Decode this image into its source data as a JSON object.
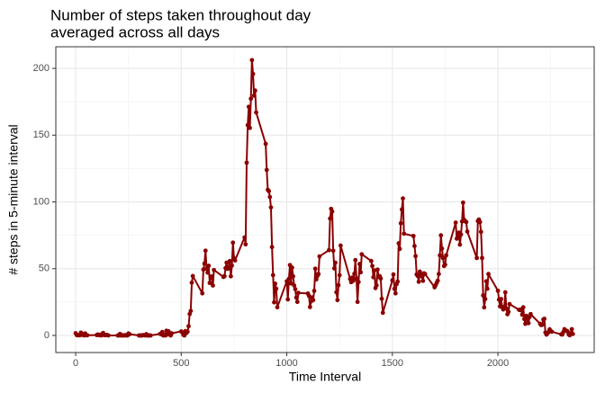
{
  "chart_data": {
    "type": "line",
    "title": [
      "Number of steps taken throughout day",
      "averaged across all days"
    ],
    "x_label": "Time Interval",
    "y_label": "# steps in 5-minute interval",
    "x": [
      0,
      5,
      10,
      15,
      20,
      25,
      30,
      35,
      40,
      45,
      50,
      55,
      100,
      105,
      110,
      115,
      120,
      125,
      130,
      135,
      140,
      145,
      150,
      155,
      200,
      205,
      210,
      215,
      220,
      225,
      230,
      235,
      240,
      245,
      250,
      255,
      300,
      305,
      310,
      315,
      320,
      325,
      330,
      335,
      340,
      345,
      350,
      355,
      400,
      405,
      410,
      415,
      420,
      425,
      430,
      435,
      440,
      445,
      450,
      455,
      500,
      505,
      510,
      515,
      520,
      525,
      530,
      535,
      540,
      545,
      550,
      555,
      600,
      605,
      610,
      615,
      620,
      625,
      630,
      635,
      640,
      645,
      650,
      655,
      700,
      705,
      710,
      715,
      720,
      725,
      730,
      735,
      740,
      745,
      750,
      755,
      800,
      805,
      810,
      815,
      820,
      825,
      830,
      835,
      840,
      845,
      850,
      855,
      900,
      905,
      910,
      915,
      920,
      925,
      930,
      935,
      940,
      945,
      950,
      955,
      1000,
      1005,
      1010,
      1015,
      1020,
      1025,
      1030,
      1035,
      1040,
      1045,
      1050,
      1055,
      1100,
      1105,
      1110,
      1115,
      1120,
      1125,
      1130,
      1135,
      1140,
      1145,
      1150,
      1155,
      1200,
      1205,
      1210,
      1215,
      1220,
      1225,
      1230,
      1235,
      1240,
      1245,
      1250,
      1255,
      1300,
      1305,
      1310,
      1315,
      1320,
      1325,
      1330,
      1335,
      1340,
      1345,
      1350,
      1355,
      1400,
      1405,
      1410,
      1415,
      1420,
      1425,
      1430,
      1435,
      1440,
      1445,
      1450,
      1455,
      1500,
      1505,
      1510,
      1515,
      1520,
      1525,
      1530,
      1535,
      1540,
      1545,
      1550,
      1555,
      1600,
      1605,
      1610,
      1615,
      1620,
      1625,
      1630,
      1635,
      1640,
      1645,
      1650,
      1655,
      1700,
      1705,
      1710,
      1715,
      1720,
      1725,
      1730,
      1735,
      1740,
      1745,
      1750,
      1755,
      1800,
      1805,
      1810,
      1815,
      1820,
      1825,
      1830,
      1835,
      1840,
      1845,
      1850,
      1855,
      1900,
      1905,
      1910,
      1915,
      1920,
      1925,
      1930,
      1935,
      1940,
      1945,
      1950,
      1955,
      2000,
      2005,
      2010,
      2015,
      2020,
      2025,
      2030,
      2035,
      2040,
      2045,
      2050,
      2055,
      2100,
      2105,
      2110,
      2115,
      2120,
      2125,
      2130,
      2135,
      2140,
      2145,
      2150,
      2155,
      2200,
      2205,
      2210,
      2215,
      2220,
      2225,
      2230,
      2235,
      2240,
      2245,
      2250,
      2255,
      2300,
      2305,
      2310,
      2315,
      2320,
      2325,
      2330,
      2335,
      2340,
      2345,
      2350,
      2355
    ],
    "series": [
      {
        "name": "steps",
        "color": "#8b0000",
        "values": [
          1.7,
          0.3,
          0.1,
          0.2,
          0.1,
          2.1,
          0.5,
          0.9,
          0,
          1.5,
          0.3,
          0.1,
          0.3,
          0.7,
          0.2,
          0.3,
          0,
          1.1,
          1.8,
          0.2,
          0.2,
          0.4,
          0.3,
          0,
          0,
          0,
          1.1,
          0,
          0,
          0.1,
          0,
          0.2,
          0,
          0,
          1.5,
          0.9,
          0,
          0,
          0,
          0,
          0.2,
          0.2,
          0,
          1.0,
          0,
          0,
          0,
          0,
          1.2,
          0.9,
          2.6,
          0,
          0.6,
          0,
          3.5,
          0.8,
          3.1,
          1.1,
          0,
          1.6,
          3.0,
          2.2,
          0.5,
          0,
          3.3,
          1.9,
          2.8,
          6.9,
          16.0,
          18.3,
          39.5,
          44.5,
          31.5,
          49.3,
          53.8,
          63.5,
          50.0,
          47.1,
          52.2,
          39.3,
          44.0,
          44.2,
          37.4,
          49.0,
          43.8,
          44.4,
          50.5,
          54.5,
          49.9,
          51.0,
          55.7,
          44.3,
          52.3,
          69.5,
          57.8,
          56.2,
          73.4,
          68.2,
          129.4,
          157.5,
          171.2,
          155.4,
          177.3,
          206.2,
          195.9,
          179.6,
          183.4,
          167.0,
          143.5,
          124.0,
          109.1,
          108.1,
          103.7,
          95.9,
          66.2,
          45.2,
          24.8,
          38.8,
          35.0,
          21.1,
          40.6,
          27.0,
          42.4,
          52.7,
          38.9,
          50.8,
          44.3,
          37.4,
          34.7,
          28.3,
          25.1,
          31.9,
          31.4,
          29.7,
          21.3,
          25.5,
          28.4,
          26.5,
          33.4,
          50.0,
          42.0,
          44.6,
          46.0,
          59.2,
          63.9,
          87.6,
          94.8,
          92.8,
          63.4,
          50.2,
          54.5,
          32.4,
          26.5,
          37.7,
          45.1,
          67.3,
          42.3,
          39.9,
          43.3,
          41.0,
          46.2,
          56.4,
          42.8,
          25.1,
          40.0,
          53.5,
          47.3,
          60.8,
          55.8,
          52.0,
          43.6,
          48.7,
          35.5,
          37.5,
          49.3,
          43.8,
          44.4,
          42.6,
          27.5,
          17.0,
          41.3,
          45.7,
          34.9,
          31.5,
          38.4,
          40.4,
          69.0,
          64.8,
          84.0,
          94.3,
          102.6,
          76.2,
          74.5,
          67.0,
          59.4,
          45.7,
          44.6,
          40.2,
          47.8,
          46.0,
          44.2,
          40.9,
          46.5,
          46.0,
          36.1,
          37.7,
          39.4,
          41.0,
          46.0,
          60.0,
          75.0,
          65.0,
          58.0,
          52.0,
          53.0,
          60.0,
          84.5,
          72.5,
          75.0,
          77.0,
          68.0,
          75.6,
          85.3,
          99.5,
          86.6,
          85.6,
          84.9,
          77.8,
          58.0,
          85.7,
          86.8,
          84.9,
          77.6,
          58.0,
          30.0,
          21.0,
          27.3,
          40.6,
          35.0,
          46.0,
          33.5,
          26.8,
          21.7,
          27.3,
          21.3,
          19.5,
          21.3,
          32.3,
          20.2,
          15.9,
          17.6,
          23.5,
          19.2,
          19.0,
          19.4,
          15.5,
          21.1,
          12.3,
          8.7,
          14.7,
          11.8,
          9.2,
          13.8,
          16.0,
          8.7,
          7.8,
          8.0,
          11.9,
          12.5,
          2.2,
          0.6,
          1.6,
          2.6,
          4.6,
          3.3,
          2.8,
          0.8,
          0.7,
          2.6,
          4.7,
          3.7,
          3.5,
          3.0,
          0.8,
          0.1,
          1.5,
          4.7,
          1.1
        ]
      }
    ],
    "xlim": [
      -94,
      2456
    ],
    "ylim": [
      -12.8,
      216.2
    ],
    "xticks": [
      0,
      500,
      1000,
      1500,
      2000
    ],
    "yticks": [
      0,
      50,
      100,
      150,
      200
    ],
    "x_minor_ticks": [
      250,
      750,
      1250,
      1750,
      2250
    ],
    "y_minor_ticks": [
      25,
      75,
      125,
      175
    ],
    "grid": true
  }
}
